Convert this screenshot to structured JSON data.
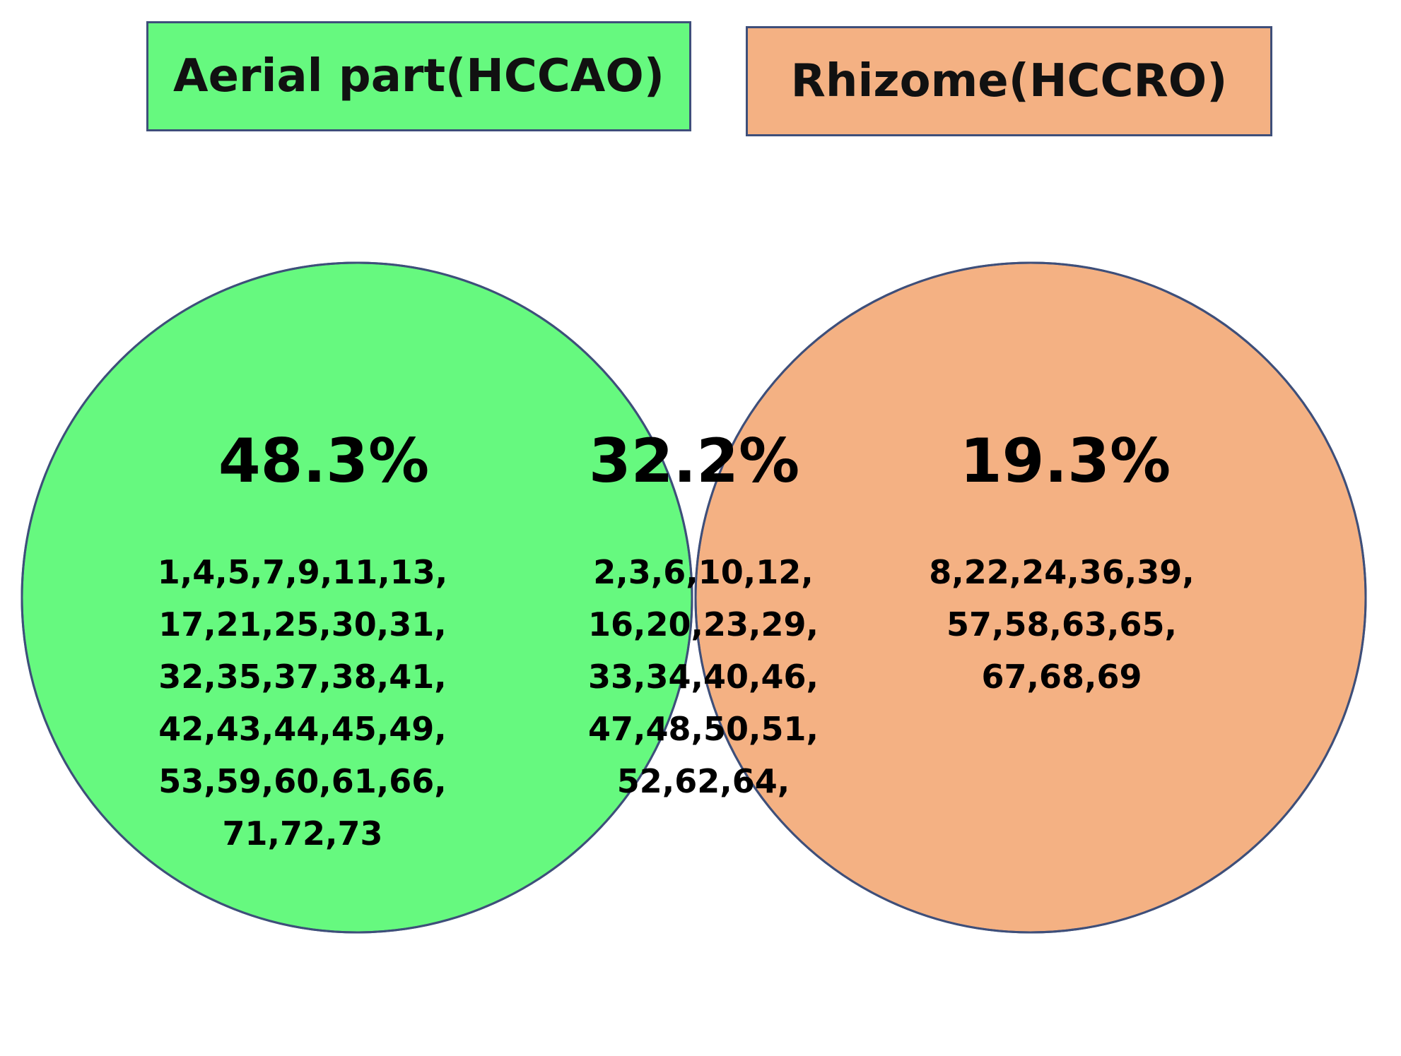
{
  "colors": {
    "aerial": "#66f97f",
    "rhizome": "#f4b183",
    "overlap": "#00aeef",
    "outline": "#3e4f7a"
  },
  "labels": {
    "aerial": "Aerial part(HCCAO)",
    "rhizome": "Rhizome(HCCRO)"
  },
  "regions": {
    "aerial_only": {
      "percent": "48.3%",
      "lines": [
        "1,4,5,7,9,11,13,",
        "17,21,25,30,31,",
        "32,35,37,38,41,",
        "42,43,44,45,49,",
        "53,59,60,61,66,",
        "71,72,73"
      ]
    },
    "shared": {
      "percent": "32.2%",
      "lines": [
        "2,3,6,10,12,",
        "16,20,23,29,",
        "33,34,40,46,",
        "47,48,50,51,",
        "52,62,64,"
      ]
    },
    "rhizome_only": {
      "percent": "19.3%",
      "lines": [
        "8,22,24,36,39,",
        "57,58,63,65,",
        "67,68,69"
      ]
    }
  }
}
